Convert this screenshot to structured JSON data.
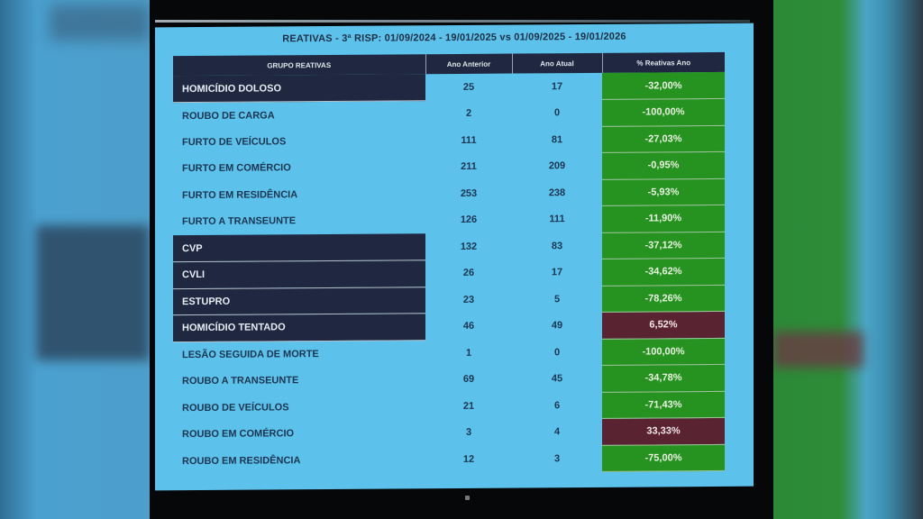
{
  "title": "REATIVAS - 3ª RISP: 01/09/2024 - 19/01/2025 vs 01/09/2025 - 19/01/2026",
  "table": {
    "headers": {
      "group": "GRUPO REATIVAS",
      "previous_year": "Ano Anterior",
      "current_year": "Ano Atual",
      "percent": "% Reativas Ano"
    },
    "rows": [
      {
        "group": "HOMICÍDIO DOLOSO",
        "previous": "25",
        "current": "17",
        "percent": "-32,00%",
        "highlight": true,
        "status": "good"
      },
      {
        "group": "ROUBO DE CARGA",
        "previous": "2",
        "current": "0",
        "percent": "-100,00%",
        "highlight": false,
        "status": "good"
      },
      {
        "group": "FURTO DE VEÍCULOS",
        "previous": "111",
        "current": "81",
        "percent": "-27,03%",
        "highlight": false,
        "status": "good"
      },
      {
        "group": "FURTO EM COMÉRCIO",
        "previous": "211",
        "current": "209",
        "percent": "-0,95%",
        "highlight": false,
        "status": "good"
      },
      {
        "group": "FURTO EM RESIDÊNCIA",
        "previous": "253",
        "current": "238",
        "percent": "-5,93%",
        "highlight": false,
        "status": "good"
      },
      {
        "group": "FURTO A TRANSEUNTE",
        "previous": "126",
        "current": "111",
        "percent": "-11,90%",
        "highlight": false,
        "status": "good"
      },
      {
        "group": "CVP",
        "previous": "132",
        "current": "83",
        "percent": "-37,12%",
        "highlight": true,
        "status": "good"
      },
      {
        "group": "CVLI",
        "previous": "26",
        "current": "17",
        "percent": "-34,62%",
        "highlight": true,
        "status": "good"
      },
      {
        "group": "ESTUPRO",
        "previous": "23",
        "current": "5",
        "percent": "-78,26%",
        "highlight": true,
        "status": "good"
      },
      {
        "group": "HOMICÍDIO TENTADO",
        "previous": "46",
        "current": "49",
        "percent": "6,52%",
        "highlight": true,
        "status": "bad"
      },
      {
        "group": "LESÃO SEGUIDA DE MORTE",
        "previous": "1",
        "current": "0",
        "percent": "-100,00%",
        "highlight": false,
        "status": "good"
      },
      {
        "group": "ROUBO A TRANSEUNTE",
        "previous": "69",
        "current": "45",
        "percent": "-34,78%",
        "highlight": false,
        "status": "good"
      },
      {
        "group": "ROUBO DE VEÍCULOS",
        "previous": "21",
        "current": "6",
        "percent": "-71,43%",
        "highlight": false,
        "status": "good"
      },
      {
        "group": "ROUBO EM COMÉRCIO",
        "previous": "3",
        "current": "4",
        "percent": "33,33%",
        "highlight": false,
        "status": "bad"
      },
      {
        "group": "ROUBO EM RESIDÊNCIA",
        "previous": "12",
        "current": "3",
        "percent": "-75,00%",
        "highlight": false,
        "status": "good"
      }
    ]
  },
  "colors": {
    "screen_bg": "#5cc2ec",
    "header_bg": "#1f2840",
    "good": "#26921f",
    "bad": "#5a2332"
  }
}
